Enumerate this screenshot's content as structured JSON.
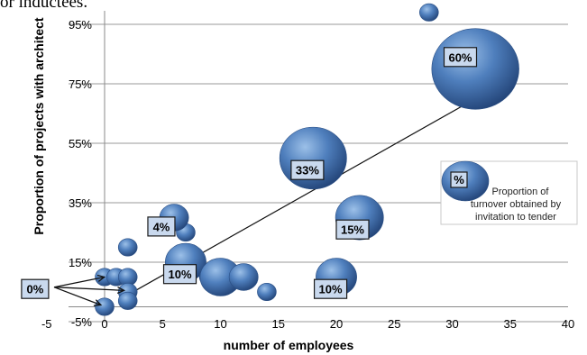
{
  "top_fragment": "or inductees.",
  "chart_data": {
    "type": "scatter",
    "subtype": "bubble",
    "title": "",
    "xlabel": "number of employees",
    "ylabel": "Proportion of projects with architect",
    "xlim": [
      -5,
      40
    ],
    "ylim": [
      -5,
      95
    ],
    "x_ticks": [
      "-5",
      "0",
      "5",
      "10",
      "15",
      "20",
      "25",
      "30",
      "35",
      "40"
    ],
    "y_ticks": [
      "-5%",
      "15%",
      "35%",
      "55%",
      "75%",
      "95%"
    ],
    "grid": "horizontal",
    "color": "#3b6aa8",
    "points": [
      {
        "x": 0,
        "y": 10,
        "size": 1
      },
      {
        "x": 1,
        "y": 10,
        "size": 1
      },
      {
        "x": 2,
        "y": 10,
        "size": 1
      },
      {
        "x": 2,
        "y": 5,
        "size": 1
      },
      {
        "x": 2,
        "y": 2,
        "size": 1
      },
      {
        "x": 0,
        "y": 0,
        "size": 1
      },
      {
        "x": 2,
        "y": 20,
        "size": 1
      },
      {
        "x": 7,
        "y": 25,
        "size": 1
      },
      {
        "x": 6,
        "y": 30,
        "size": 4
      },
      {
        "x": 7,
        "y": 15,
        "size": 10
      },
      {
        "x": 9,
        "y": 10,
        "size": 1
      },
      {
        "x": 10,
        "y": 10,
        "size": 10
      },
      {
        "x": 12,
        "y": 10,
        "size": 4
      },
      {
        "x": 14,
        "y": 5,
        "size": 1
      },
      {
        "x": 18,
        "y": 50,
        "size": 33
      },
      {
        "x": 20,
        "y": 10,
        "size": 10
      },
      {
        "x": 22,
        "y": 30,
        "size": 15
      },
      {
        "x": 28,
        "y": 99,
        "size": 1
      },
      {
        "x": 32,
        "y": 80,
        "size": 60
      }
    ],
    "annotations": [
      {
        "text": "60%",
        "x": 30.7,
        "y": 84
      },
      {
        "text": "33%",
        "x": 17.5,
        "y": 46
      },
      {
        "text": "15%",
        "x": 21.4,
        "y": 26
      },
      {
        "text": "10%",
        "x": 19.5,
        "y": 6
      },
      {
        "text": "10%",
        "x": 6.5,
        "y": 11
      },
      {
        "text": "4%",
        "x": 4.9,
        "y": 27
      },
      {
        "text": "0%",
        "x": -6,
        "y": 6
      }
    ],
    "trendline": {
      "from": [
        2,
        4
      ],
      "to": [
        32,
        70
      ]
    },
    "legend": {
      "symbol": "%",
      "text": [
        "Proportion of",
        "turnover obtained by",
        "invitation to tender"
      ],
      "placement": "right"
    }
  }
}
